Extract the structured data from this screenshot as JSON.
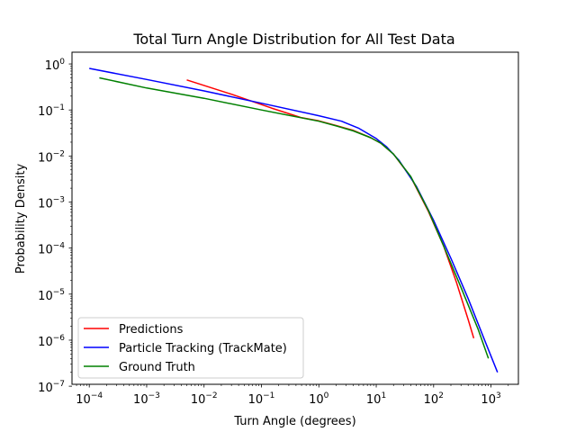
{
  "chart_data": {
    "type": "line",
    "title": "Total Turn Angle Distribution for All Test Data",
    "xlabel": "Turn Angle (degrees)",
    "ylabel": "Probability Density",
    "xscale": "log",
    "yscale": "log",
    "xlim": [
      5e-05,
      3000
    ],
    "ylim": [
      1.1e-07,
      1.8
    ],
    "x_ticks": [
      {
        "value": 0.0001,
        "base": "10",
        "exp": "−4"
      },
      {
        "value": 0.001,
        "base": "10",
        "exp": "−3"
      },
      {
        "value": 0.01,
        "base": "10",
        "exp": "−2"
      },
      {
        "value": 0.1,
        "base": "10",
        "exp": "−1"
      },
      {
        "value": 1,
        "base": "10",
        "exp": "0"
      },
      {
        "value": 10,
        "base": "10",
        "exp": "1"
      },
      {
        "value": 100,
        "base": "10",
        "exp": "2"
      },
      {
        "value": 1000,
        "base": "10",
        "exp": "3"
      }
    ],
    "y_ticks": [
      {
        "value": 1e-07,
        "base": "10",
        "exp": "−7"
      },
      {
        "value": 1e-06,
        "base": "10",
        "exp": "−6"
      },
      {
        "value": 1e-05,
        "base": "10",
        "exp": "−5"
      },
      {
        "value": 0.0001,
        "base": "10",
        "exp": "−4"
      },
      {
        "value": 0.001,
        "base": "10",
        "exp": "−3"
      },
      {
        "value": 0.01,
        "base": "10",
        "exp": "−2"
      },
      {
        "value": 0.1,
        "base": "10",
        "exp": "−1"
      },
      {
        "value": 1,
        "base": "10",
        "exp": "0"
      }
    ],
    "grid": false,
    "legend_position": "lower-left",
    "series": [
      {
        "name": "Predictions",
        "color": "#ff0000",
        "x": [
          0.005,
          0.03,
          0.15,
          0.5,
          1,
          2,
          4,
          8,
          12,
          20,
          40,
          80,
          150,
          250,
          400,
          500
        ],
        "y": [
          0.45,
          0.22,
          0.11,
          0.068,
          0.058,
          0.046,
          0.036,
          0.025,
          0.019,
          0.011,
          0.0035,
          0.00065,
          0.00011,
          1.8e-05,
          2.8e-06,
          1.1e-06
        ]
      },
      {
        "name": "Particle Tracking (TrackMate)",
        "color": "#0000ff",
        "x": [
          0.0001,
          0.001,
          0.01,
          0.1,
          1,
          2.5,
          5,
          10,
          15,
          25,
          50,
          100,
          200,
          400,
          800,
          1300
        ],
        "y": [
          0.8,
          0.46,
          0.26,
          0.14,
          0.075,
          0.057,
          0.04,
          0.024,
          0.016,
          0.008,
          0.0022,
          0.0004,
          6e-05,
          8e-06,
          9e-07,
          2e-07
        ]
      },
      {
        "name": "Ground Truth",
        "color": "#008000",
        "x": [
          0.00015,
          0.001,
          0.01,
          0.1,
          1,
          2,
          4,
          8,
          12,
          20,
          40,
          80,
          150,
          300,
          600,
          900
        ],
        "y": [
          0.5,
          0.3,
          0.18,
          0.1,
          0.057,
          0.045,
          0.035,
          0.025,
          0.019,
          0.011,
          0.0036,
          0.00068,
          0.00011,
          1.4e-05,
          1.7e-06,
          4e-07
        ]
      }
    ]
  }
}
